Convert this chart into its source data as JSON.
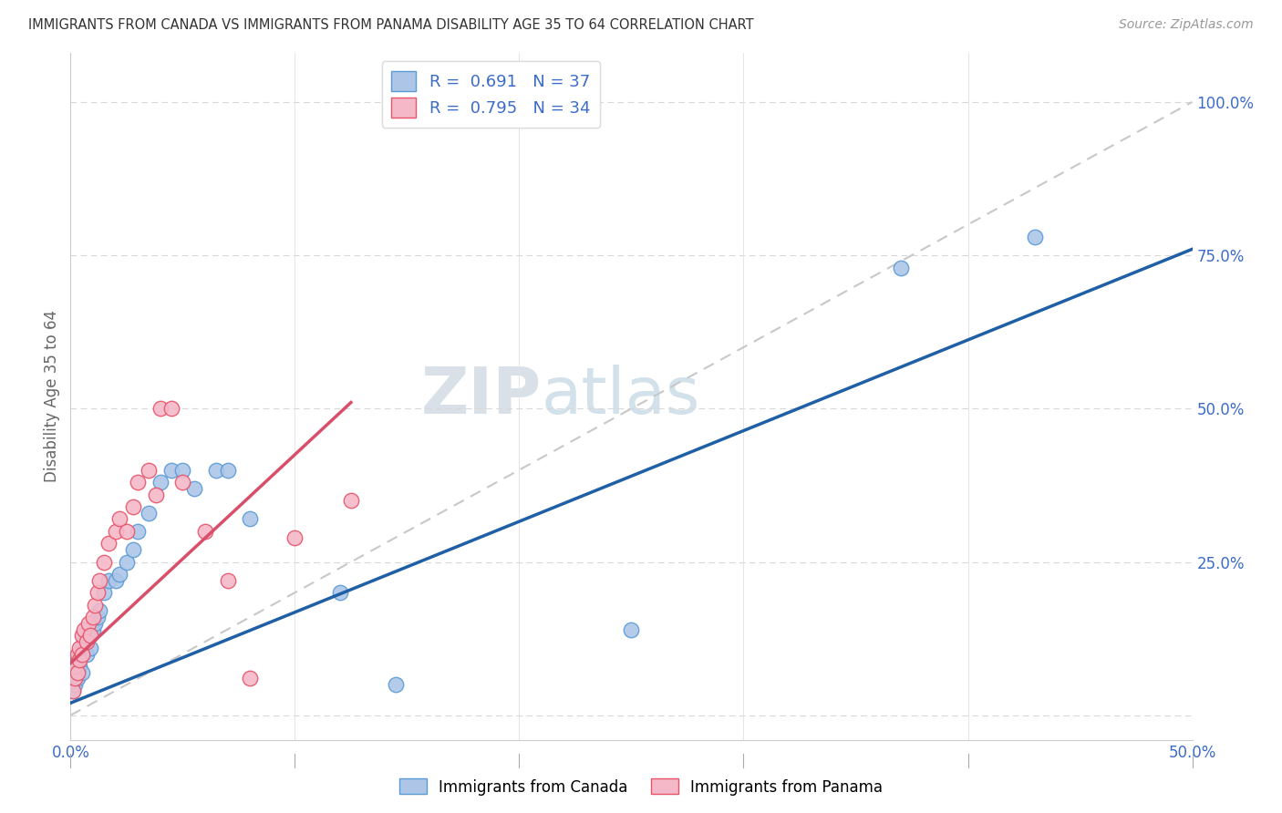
{
  "title": "IMMIGRANTS FROM CANADA VS IMMIGRANTS FROM PANAMA DISABILITY AGE 35 TO 64 CORRELATION CHART",
  "source": "Source: ZipAtlas.com",
  "ylabel": "Disability Age 35 to 64",
  "xlim": [
    0.0,
    0.5
  ],
  "ylim": [
    -0.04,
    1.08
  ],
  "xticks": [
    0.0,
    0.1,
    0.2,
    0.3,
    0.4,
    0.5
  ],
  "ytick_positions": [
    0.0,
    0.25,
    0.5,
    0.75,
    1.0
  ],
  "ytick_labels": [
    "",
    "25.0%",
    "50.0%",
    "75.0%",
    "100.0%"
  ],
  "xtick_labels": [
    "0.0%",
    "",
    "",
    "",
    "",
    "50.0%"
  ],
  "canada_color": "#adc6e8",
  "canada_edge": "#5b9bd5",
  "panama_color": "#f4b8c8",
  "panama_edge": "#e8546a",
  "trendline_canada_color": "#1f5fa6",
  "trendline_panama_color": "#d94f6a",
  "diagonal_color": "#c8c8c8",
  "R_canada": 0.691,
  "N_canada": 37,
  "R_panama": 0.795,
  "N_panama": 34,
  "legend_label_canada": "Immigrants from Canada",
  "legend_label_panama": "Immigrants from Panama",
  "canada_x": [
    0.001,
    0.002,
    0.002,
    0.003,
    0.003,
    0.004,
    0.004,
    0.005,
    0.005,
    0.006,
    0.007,
    0.008,
    0.009,
    0.01,
    0.011,
    0.012,
    0.013,
    0.015,
    0.017,
    0.02,
    0.022,
    0.025,
    0.028,
    0.03,
    0.035,
    0.04,
    0.045,
    0.05,
    0.055,
    0.065,
    0.07,
    0.08,
    0.12,
    0.145,
    0.25,
    0.37,
    0.43
  ],
  "canada_y": [
    0.04,
    0.05,
    0.07,
    0.06,
    0.09,
    0.08,
    0.1,
    0.07,
    0.11,
    0.12,
    0.1,
    0.13,
    0.11,
    0.14,
    0.15,
    0.16,
    0.17,
    0.2,
    0.22,
    0.22,
    0.23,
    0.25,
    0.27,
    0.3,
    0.33,
    0.38,
    0.4,
    0.4,
    0.37,
    0.4,
    0.4,
    0.32,
    0.2,
    0.05,
    0.14,
    0.73,
    0.78
  ],
  "panama_x": [
    0.001,
    0.002,
    0.002,
    0.003,
    0.003,
    0.004,
    0.004,
    0.005,
    0.005,
    0.006,
    0.007,
    0.008,
    0.009,
    0.01,
    0.011,
    0.012,
    0.013,
    0.015,
    0.017,
    0.02,
    0.022,
    0.025,
    0.028,
    0.03,
    0.035,
    0.038,
    0.04,
    0.045,
    0.05,
    0.06,
    0.07,
    0.08,
    0.1,
    0.125
  ],
  "panama_y": [
    0.04,
    0.06,
    0.08,
    0.07,
    0.1,
    0.09,
    0.11,
    0.1,
    0.13,
    0.14,
    0.12,
    0.15,
    0.13,
    0.16,
    0.18,
    0.2,
    0.22,
    0.25,
    0.28,
    0.3,
    0.32,
    0.3,
    0.34,
    0.38,
    0.4,
    0.36,
    0.5,
    0.5,
    0.38,
    0.3,
    0.22,
    0.06,
    0.29,
    0.35
  ],
  "canada_trend_x": [
    0.0,
    0.5
  ],
  "canada_trend_y": [
    0.02,
    0.76
  ],
  "panama_trend_x": [
    0.0,
    0.125
  ],
  "panama_trend_y": [
    0.085,
    0.51
  ],
  "watermark_zip": "ZIP",
  "watermark_atlas": "atlas",
  "background_color": "#ffffff",
  "grid_color": "#e0e0e0",
  "grid_dash_color": "#d8d8d8"
}
